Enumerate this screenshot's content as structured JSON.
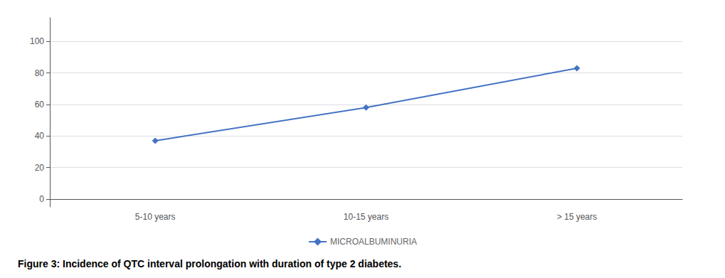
{
  "chart_data": {
    "type": "line",
    "title": "Figure 3: Incidence of QTC interval prolongation with duration of type 2 diabetes.",
    "categories": [
      "5-10 years",
      "10-15 years",
      "> 15 years"
    ],
    "series": [
      {
        "name": "MICROALBUMINURIA",
        "color": "#4472C4",
        "marker": "diamond",
        "values": [
          37,
          58,
          83
        ]
      }
    ],
    "ylim": [
      -5,
      115
    ],
    "yticks": [
      0,
      20,
      40,
      60,
      80,
      100
    ],
    "grid": true,
    "legend": "bottom"
  }
}
